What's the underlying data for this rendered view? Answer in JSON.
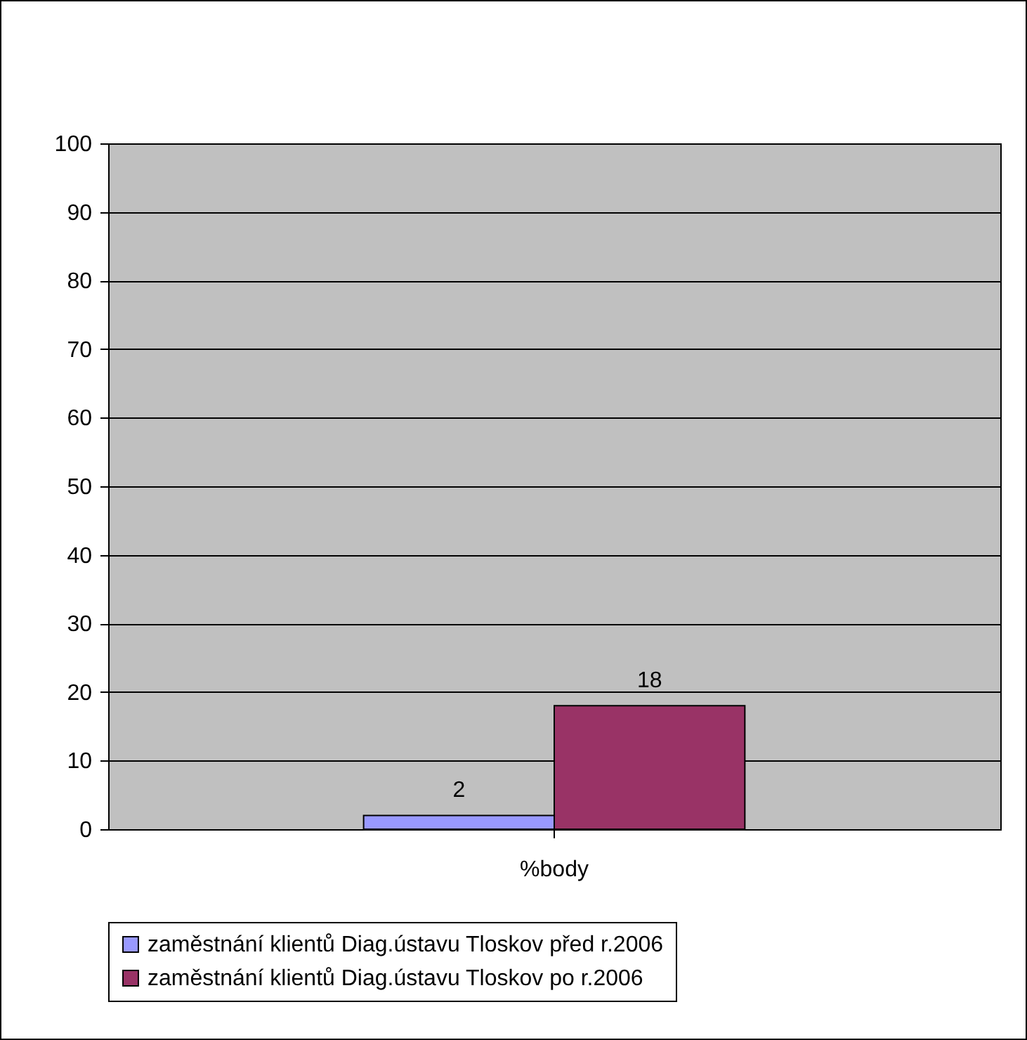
{
  "chart_data": {
    "type": "bar",
    "categories": [
      "%body"
    ],
    "series": [
      {
        "name": "zaměstnání klientů Diag.ústavu Tloskov před r.2006",
        "color": "#9999ff",
        "values": [
          2
        ]
      },
      {
        "name": "zaměstnání klientů Diag.ústavu Tloskov po r.2006",
        "color": "#993366",
        "values": [
          18
        ]
      }
    ],
    "ylim": [
      0,
      100
    ],
    "yticks": [
      0,
      10,
      20,
      30,
      40,
      50,
      60,
      70,
      80,
      90,
      100
    ],
    "grid": "y",
    "legend": "bottom",
    "data_labels": true
  }
}
